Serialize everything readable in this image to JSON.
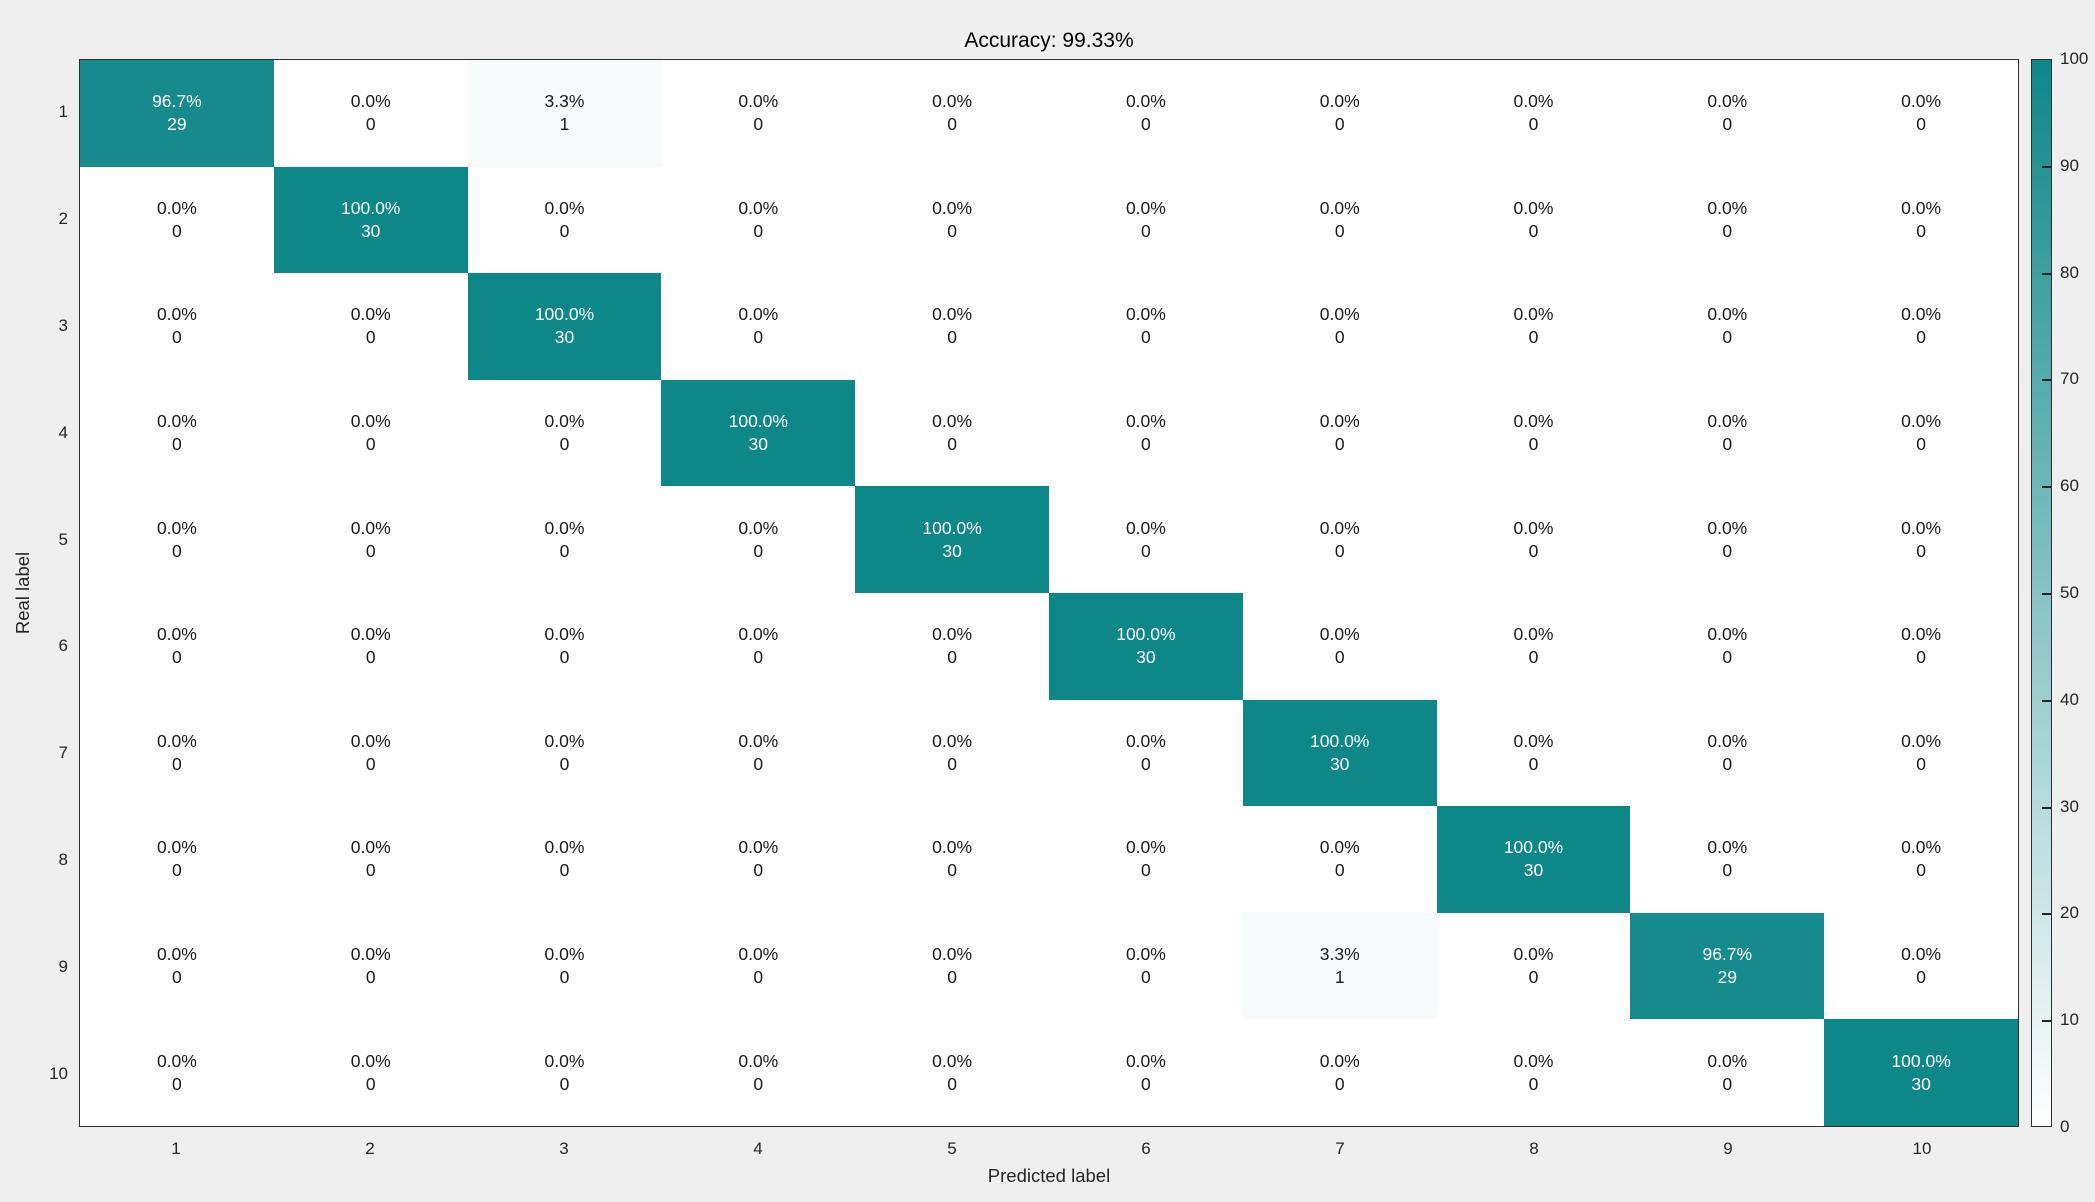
{
  "colors": {
    "background": "#efefef",
    "axes_background": "#ffffff",
    "teal_max": "#0e8789",
    "border": "#2e2e2e",
    "text_dark": "#1a1a1a",
    "text_on_teal": "#ffffff"
  },
  "chart_data": {
    "type": "heatmap",
    "title": "Accuracy: 99.33%",
    "xlabel": "Predicted label",
    "ylabel": "Real label",
    "x_ticks": [
      "1",
      "2",
      "3",
      "4",
      "5",
      "6",
      "7",
      "8",
      "9",
      "10"
    ],
    "y_ticks": [
      "1",
      "2",
      "3",
      "4",
      "5",
      "6",
      "7",
      "8",
      "9",
      "10"
    ],
    "colorbar": {
      "min": 0,
      "max": 100,
      "ticks": [
        0,
        10,
        20,
        30,
        40,
        50,
        60,
        70,
        80,
        90,
        100
      ]
    },
    "percent_matrix": [
      [
        96.7,
        0.0,
        3.3,
        0.0,
        0.0,
        0.0,
        0.0,
        0.0,
        0.0,
        0.0
      ],
      [
        0.0,
        100.0,
        0.0,
        0.0,
        0.0,
        0.0,
        0.0,
        0.0,
        0.0,
        0.0
      ],
      [
        0.0,
        0.0,
        100.0,
        0.0,
        0.0,
        0.0,
        0.0,
        0.0,
        0.0,
        0.0
      ],
      [
        0.0,
        0.0,
        0.0,
        100.0,
        0.0,
        0.0,
        0.0,
        0.0,
        0.0,
        0.0
      ],
      [
        0.0,
        0.0,
        0.0,
        0.0,
        100.0,
        0.0,
        0.0,
        0.0,
        0.0,
        0.0
      ],
      [
        0.0,
        0.0,
        0.0,
        0.0,
        0.0,
        100.0,
        0.0,
        0.0,
        0.0,
        0.0
      ],
      [
        0.0,
        0.0,
        0.0,
        0.0,
        0.0,
        0.0,
        100.0,
        0.0,
        0.0,
        0.0
      ],
      [
        0.0,
        0.0,
        0.0,
        0.0,
        0.0,
        0.0,
        0.0,
        100.0,
        0.0,
        0.0
      ],
      [
        0.0,
        0.0,
        0.0,
        0.0,
        0.0,
        0.0,
        3.3,
        0.0,
        96.7,
        0.0
      ],
      [
        0.0,
        0.0,
        0.0,
        0.0,
        0.0,
        0.0,
        0.0,
        0.0,
        0.0,
        100.0
      ]
    ],
    "count_matrix": [
      [
        29,
        0,
        1,
        0,
        0,
        0,
        0,
        0,
        0,
        0
      ],
      [
        0,
        30,
        0,
        0,
        0,
        0,
        0,
        0,
        0,
        0
      ],
      [
        0,
        0,
        30,
        0,
        0,
        0,
        0,
        0,
        0,
        0
      ],
      [
        0,
        0,
        0,
        30,
        0,
        0,
        0,
        0,
        0,
        0
      ],
      [
        0,
        0,
        0,
        0,
        30,
        0,
        0,
        0,
        0,
        0
      ],
      [
        0,
        0,
        0,
        0,
        0,
        30,
        0,
        0,
        0,
        0
      ],
      [
        0,
        0,
        0,
        0,
        0,
        0,
        30,
        0,
        0,
        0
      ],
      [
        0,
        0,
        0,
        0,
        0,
        0,
        0,
        30,
        0,
        0
      ],
      [
        0,
        0,
        0,
        0,
        0,
        0,
        1,
        0,
        29,
        0
      ],
      [
        0,
        0,
        0,
        0,
        0,
        0,
        0,
        0,
        0,
        30
      ]
    ]
  }
}
